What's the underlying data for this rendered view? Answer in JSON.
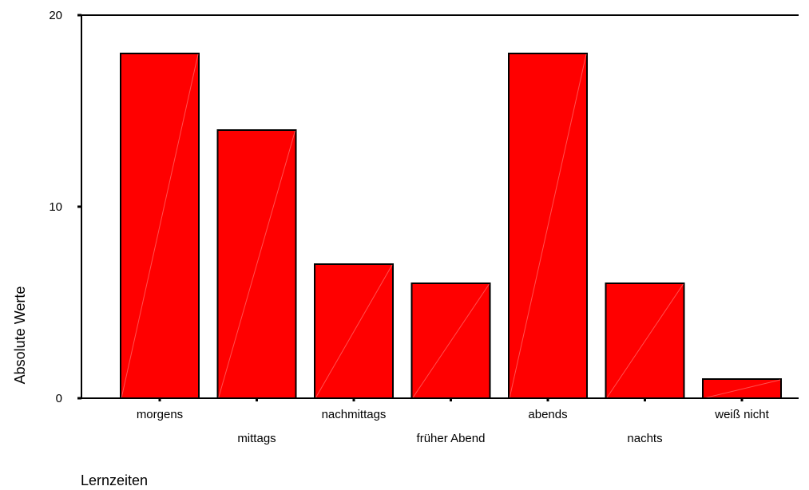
{
  "chart_data": {
    "type": "bar",
    "title": "",
    "xlabel": "Lernzeiten",
    "ylabel": "Absolute Werte",
    "categories": [
      "morgens",
      "mittags",
      "nachmittags",
      "früher Abend",
      "abends",
      "nachts",
      "weiß nicht"
    ],
    "values": [
      18,
      14,
      7,
      6,
      18,
      6,
      1
    ],
    "ylim": [
      0,
      20
    ],
    "yticks": [
      "0",
      "10",
      "20"
    ],
    "grid": false,
    "legend": "none",
    "bar_color": "#ff0000",
    "edge_color": "#000000"
  }
}
